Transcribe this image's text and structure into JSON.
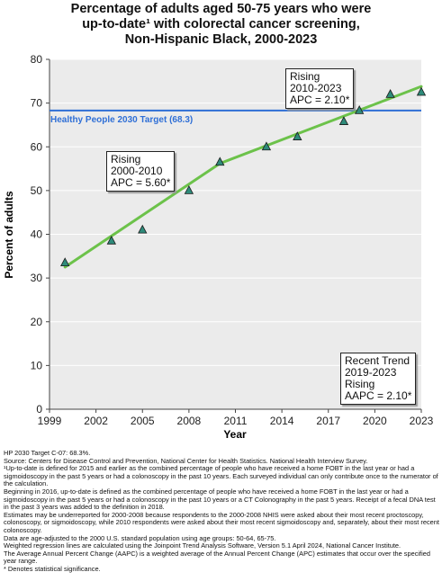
{
  "title": {
    "line1": "Percentage of adults aged 50-75 years who were",
    "line2": "up-to-date¹ with colorectal cancer screening,",
    "line3": "Non-Hispanic Black,  2000-2023"
  },
  "chart_data": {
    "type": "line",
    "xlabel": "Year",
    "ylabel": "Percent of adults",
    "xlim": [
      1999,
      2023
    ],
    "ylim": [
      0,
      80
    ],
    "xticks": [
      1999,
      2002,
      2005,
      2008,
      2011,
      2014,
      2017,
      2020,
      2023
    ],
    "yticks": [
      0,
      10,
      20,
      30,
      40,
      50,
      60,
      70,
      80
    ],
    "grid": "horizontal",
    "points": {
      "x": [
        2000,
        2003,
        2005,
        2008,
        2010,
        2013,
        2015,
        2018,
        2019,
        2021,
        2023
      ],
      "y": [
        33.5,
        38.5,
        41,
        50,
        56.5,
        60,
        62.3,
        65.8,
        68.3,
        72,
        72.5
      ]
    },
    "trend_segments": [
      {
        "x": [
          2000,
          2010
        ],
        "y": [
          32.5,
          56.2
        ]
      },
      {
        "x": [
          2010,
          2023
        ],
        "y": [
          56.2,
          73.8
        ]
      }
    ],
    "target_line": {
      "value": 68.3,
      "label": "Healthy People 2030 Target (68.3)"
    },
    "annotations": [
      {
        "lines": [
          "Rising",
          "2000-2010",
          "APC =  5.60*"
        ]
      },
      {
        "lines": [
          "Rising",
          "2010-2023",
          "APC =  2.10*"
        ]
      },
      {
        "lines": [
          "Recent Trend",
          "2019-2023",
          "Rising",
          "AAPC =  2.10*"
        ]
      }
    ],
    "colors": {
      "trend": "#6cc24a",
      "target": "#2f6fd6",
      "marker_fill": "#2e8b7a",
      "plot_bg": "#ebebeb"
    }
  },
  "footnotes": [
    "HP 2030 Target C-07: 68.3%.",
    "Source: Centers for Disease Control and Prevention, National Center for Health Statistics. National Health Interview Survey.",
    "¹Up-to-date is defined for 2015 and earlier as the combined percentage of people who have received a home FOBT in the last year or had a sigmoidoscopy in the past 5 years or had a colonoscopy in the past 10 years. Each surveyed individual can only contribute once to the numerator of the calculation.",
    "Beginning in 2016, up-to-date is defined as the combined percentage of people who have received a home FOBT in the last year or had a sigmoidoscopy in the past 5 years or had a colonoscopy in the past 10 years or a CT Colonography in the past 5 years. Receipt of a fecal DNA test in the past 3 years was added to the definition in 2018.",
    "Estimates may be underreported for 2000-2008 because respondents to the 2000-2008 NHIS were asked about their most recent proctoscopy, colonoscopy, or sigmoidoscopy, while 2010 respondents were asked about their most recent sigmoidoscopy and, separately, about their most recent colonoscopy.",
    "Data are age-adjusted to the 2000 U.S. standard population using age groups: 50-64, 65-75.",
    "Weighted regression lines are calculated using the Joinpoint Trend Analysis Software, Version 5.1 April 2024, National Cancer Institute.",
    "The Average Annual Percent Change (AAPC) is a weighted average of the Annual Percent Change (APC) estimates that occur over the specified year range.",
    "* Denotes statistical significance."
  ]
}
